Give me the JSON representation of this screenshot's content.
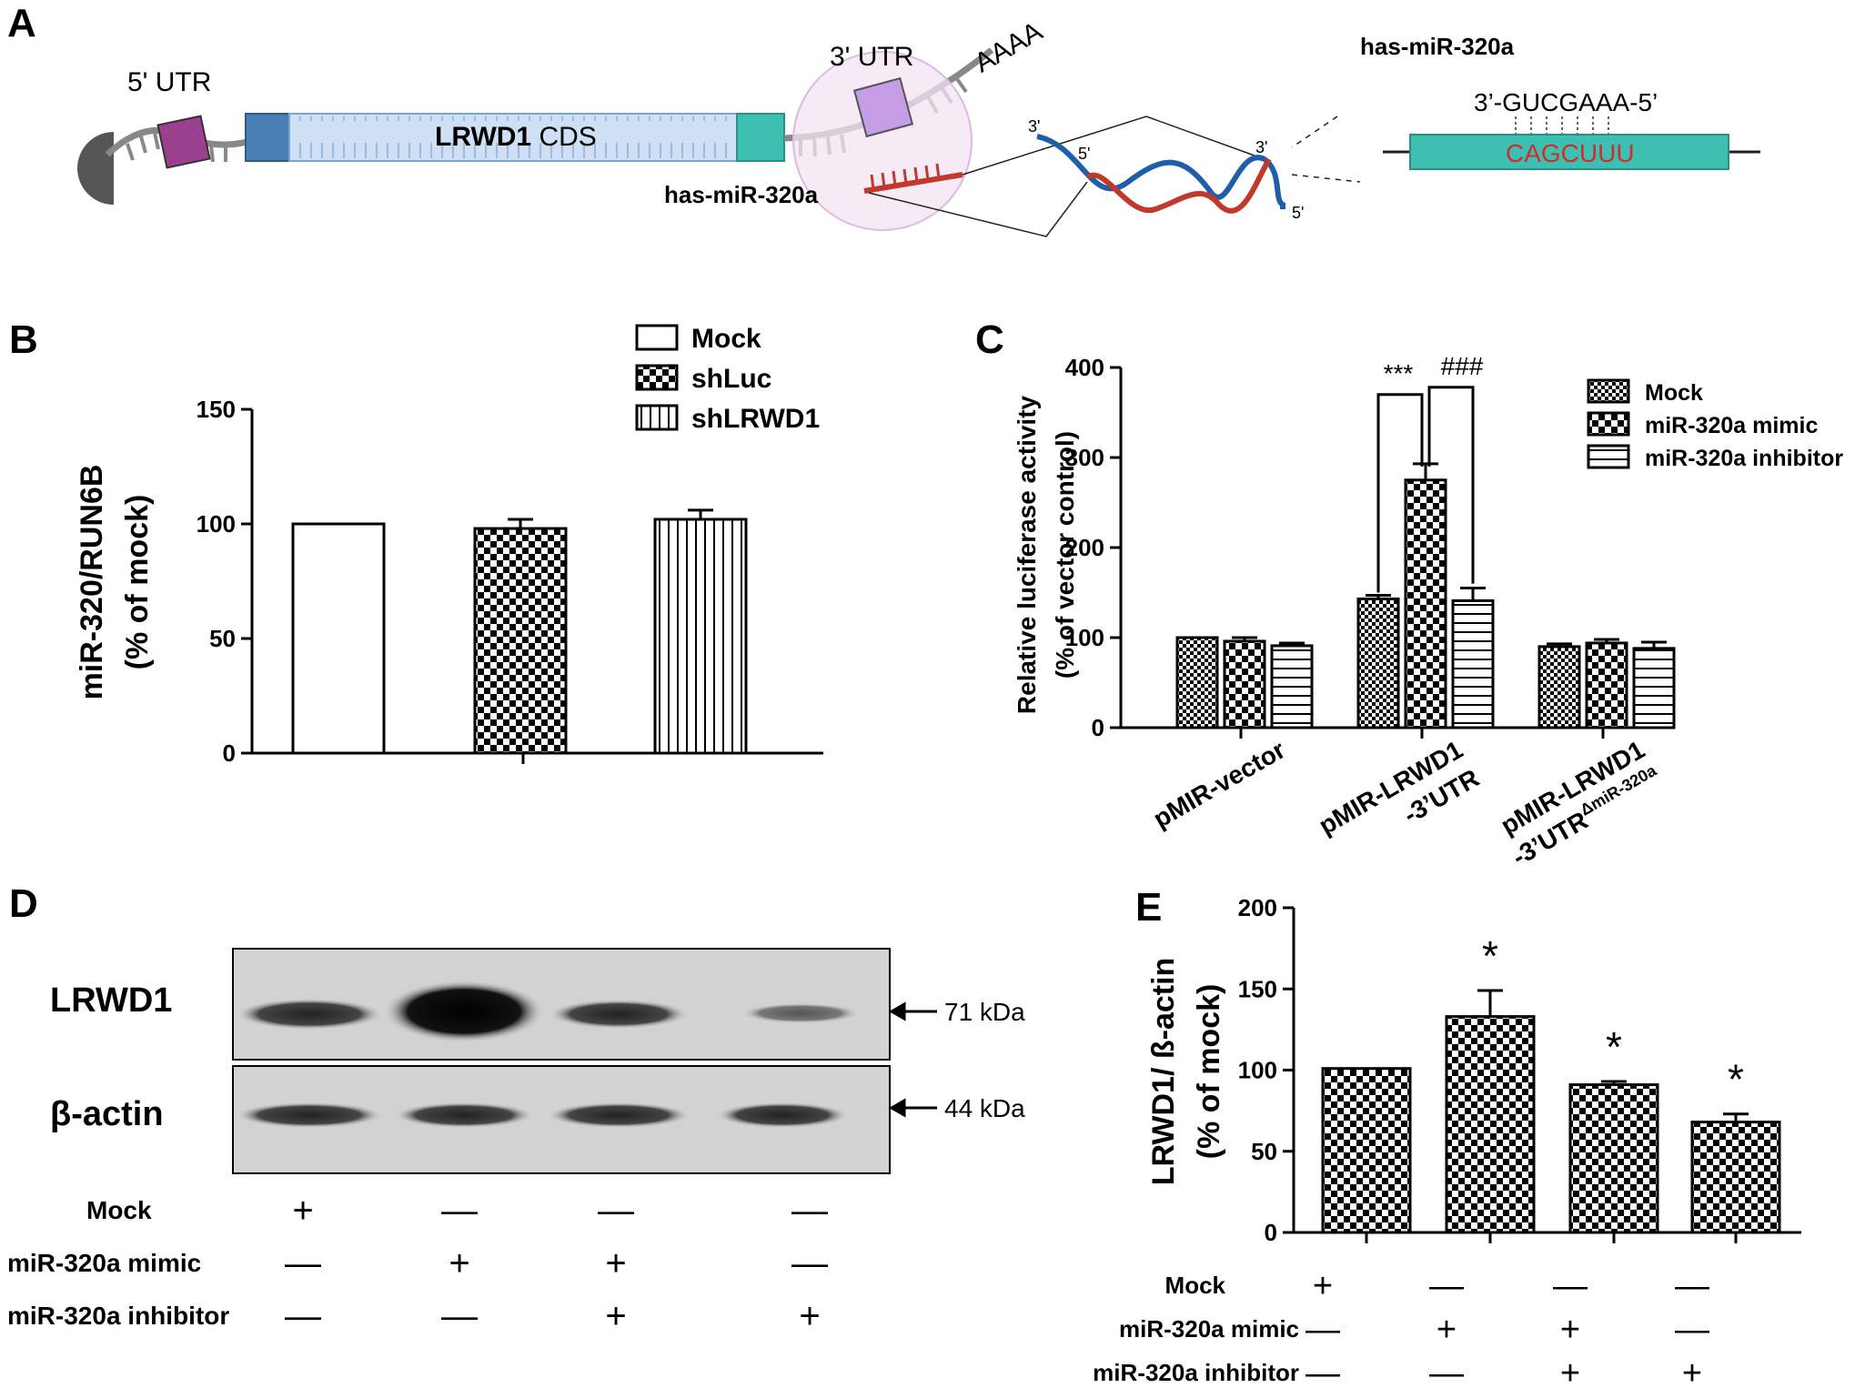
{
  "panel_labels": {
    "a": "A",
    "b": "B",
    "c": "C",
    "d": "D",
    "e": "E"
  },
  "panel_a": {
    "utr5": "5' UTR",
    "utr3": "3' UTR",
    "polya": "AAAA",
    "cds_gene": "LRWD1",
    "cds_suffix": " CDS",
    "mirna_label_left": "has-miR-320a",
    "mirna_title": "has-miR-320a",
    "seed_mirna": "3’-GUCGAAA-5’",
    "seed_target": "CAGCUUU",
    "strand_3a": "3'",
    "strand_5a": "5'",
    "strand_3b": "3'",
    "strand_5b": "5'"
  },
  "western": {
    "lrwd1_label": "LRWD1",
    "actin_label": "β-actin",
    "lrwd1_kda": "71 kDa",
    "actin_kda": "44 kDa",
    "rows": [
      {
        "label": "Mock",
        "signs": [
          "+",
          "—",
          "—",
          "—"
        ]
      },
      {
        "label": "miR-320a mimic",
        "signs": [
          "—",
          "+",
          "+",
          "—"
        ]
      },
      {
        "label": "miR-320a inhibitor",
        "signs": [
          "—",
          "—",
          "+",
          "+"
        ]
      }
    ]
  },
  "colors": {
    "cds": "#cfe0f4",
    "cds_border": "#4f81bd",
    "teal": "#3dbfb2",
    "purple": "#9b3f8f",
    "lilac": "#c59ce6",
    "mirna_red": "#c0392b",
    "helix_blue": "#1f5fa8"
  },
  "chart_data": [
    {
      "panel": "B",
      "type": "bar",
      "categories": [
        "Mock",
        "shLuc",
        "shLRWD1"
      ],
      "values": [
        100,
        98,
        102
      ],
      "errors": [
        0,
        4,
        4
      ],
      "patterns": [
        "white",
        "checker",
        "vstripe"
      ],
      "ylabel_line1": "miR-320/RUN6B",
      "ylabel_line2": "(% of mock)",
      "ylim": [
        0,
        150
      ],
      "yticks": [
        "0",
        "50",
        "100",
        "150"
      ],
      "legend": [
        "Mock",
        "shLuc",
        "shLRWD1"
      ],
      "legend_position": "top-right"
    },
    {
      "panel": "C",
      "type": "bar",
      "categories": [
        "pMIR-vector",
        "pMIR-LRWD1 -3’UTR",
        "pMIR-LRWD1 -3’UTRΔmiR-320a"
      ],
      "category_lines": [
        [
          "pMIR-vector"
        ],
        [
          "pMIR-LRWD1",
          "-3’UTR"
        ],
        [
          "pMIR-LRWD1",
          "-3’UTR"
        ]
      ],
      "category_superscript": [
        "",
        "",
        "ΔmiR-320a"
      ],
      "series": [
        {
          "name": "Mock",
          "values": [
            100,
            143,
            90
          ],
          "errors": [
            0,
            4,
            3
          ]
        },
        {
          "name": "miR-320a mimic",
          "values": [
            96,
            275,
            94
          ],
          "errors": [
            4,
            18,
            4
          ]
        },
        {
          "name": "miR-320a inhibitor",
          "values": [
            91,
            141,
            88
          ],
          "errors": [
            3,
            14,
            7
          ]
        }
      ],
      "patterns": [
        "smallchecker",
        "checker",
        "hstripe"
      ],
      "ylabel_line1": "Relative luciferase activity",
      "ylabel_line2": "(% of vector control)",
      "ylim": [
        0,
        400
      ],
      "yticks": [
        "0",
        "100",
        "200",
        "300",
        "400"
      ],
      "annotations": [
        "***",
        "###"
      ],
      "legend_position": "top-right"
    },
    {
      "panel": "E",
      "type": "bar",
      "categories": [
        "Mock",
        "miR-320a mimic",
        "miR-320a mimic + inhibitor",
        "miR-320a inhibitor"
      ],
      "values": [
        101,
        133,
        91,
        68
      ],
      "errors": [
        0,
        16,
        2,
        5
      ],
      "significance": [
        "",
        "*",
        "*",
        "*"
      ],
      "ylabel_line1": "LRWD1/ ß-actin",
      "ylabel_line2": "(% of mock)",
      "ylim": [
        0,
        200
      ],
      "yticks": [
        "0",
        "50",
        "100",
        "150",
        "200"
      ],
      "rows": [
        {
          "label": "Mock",
          "signs": [
            "+",
            "—",
            "—",
            "—"
          ]
        },
        {
          "label": "miR-320a mimic",
          "signs": [
            "—",
            "+",
            "+",
            "—"
          ]
        },
        {
          "label": "miR-320a inhibitor",
          "signs": [
            "—",
            "—",
            "+",
            "+"
          ]
        }
      ]
    }
  ]
}
